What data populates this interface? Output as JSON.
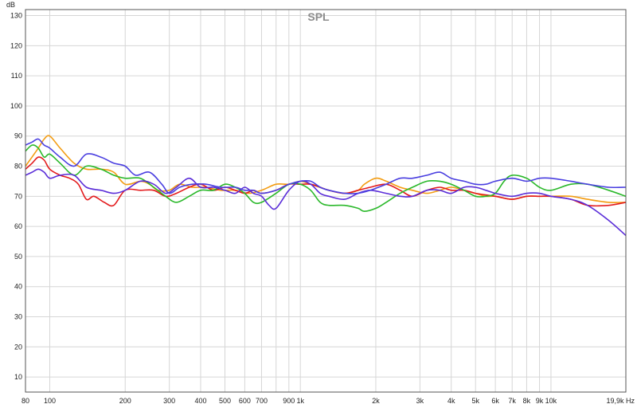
{
  "chart_data": {
    "type": "line",
    "title": "SPL",
    "ylabel": "dB",
    "xlabel": "",
    "x_scale": "log",
    "xlim": [
      80,
      19900
    ],
    "ylim": [
      5,
      132
    ],
    "grid": true,
    "y_ticks": [
      10,
      20,
      30,
      40,
      50,
      60,
      70,
      80,
      90,
      100,
      110,
      120,
      130
    ],
    "x_ticks": [
      {
        "value": 80,
        "label": "80"
      },
      {
        "value": 100,
        "label": "100"
      },
      {
        "value": 200,
        "label": "200"
      },
      {
        "value": 300,
        "label": "300"
      },
      {
        "value": 400,
        "label": "400"
      },
      {
        "value": 500,
        "label": "500"
      },
      {
        "value": 600,
        "label": "600"
      },
      {
        "value": 700,
        "label": "700"
      },
      {
        "value": 900,
        "label": "900"
      },
      {
        "value": 1000,
        "label": "1k"
      },
      {
        "value": 2000,
        "label": "2k"
      },
      {
        "value": 3000,
        "label": "3k"
      },
      {
        "value": 4000,
        "label": "4k"
      },
      {
        "value": 5000,
        "label": "5k"
      },
      {
        "value": 6000,
        "label": "6k"
      },
      {
        "value": 7000,
        "label": "7k"
      },
      {
        "value": 8000,
        "label": "8k"
      },
      {
        "value": 9000,
        "label": "9k"
      },
      {
        "value": 10000,
        "label": "10k"
      },
      {
        "value": 19900,
        "label": "19,9k Hz"
      }
    ],
    "minor_x_gridlines": [
      800,
      20000
    ],
    "series": [
      {
        "color": "#f39c12",
        "points": [
          [
            80,
            80
          ],
          [
            90,
            86
          ],
          [
            95,
            89
          ],
          [
            100,
            90
          ],
          [
            110,
            86
          ],
          [
            125,
            81
          ],
          [
            140,
            79
          ],
          [
            160,
            79
          ],
          [
            180,
            78
          ],
          [
            200,
            74
          ],
          [
            230,
            75
          ],
          [
            250,
            74
          ],
          [
            270,
            72
          ],
          [
            300,
            72
          ],
          [
            330,
            74
          ],
          [
            370,
            73
          ],
          [
            420,
            73
          ],
          [
            480,
            72
          ],
          [
            550,
            72
          ],
          [
            620,
            71
          ],
          [
            700,
            72
          ],
          [
            800,
            74
          ],
          [
            900,
            74
          ],
          [
            1000,
            75
          ],
          [
            1100,
            74
          ],
          [
            1300,
            72
          ],
          [
            1500,
            71
          ],
          [
            1700,
            72
          ],
          [
            1800,
            74
          ],
          [
            2000,
            76
          ],
          [
            2200,
            75
          ],
          [
            2500,
            73
          ],
          [
            2800,
            72
          ],
          [
            3200,
            71
          ],
          [
            3600,
            72
          ],
          [
            4000,
            73
          ],
          [
            4500,
            72
          ],
          [
            5000,
            71
          ],
          [
            5500,
            70
          ],
          [
            6000,
            70
          ],
          [
            7000,
            69
          ],
          [
            8000,
            70
          ],
          [
            9000,
            70
          ],
          [
            10000,
            70
          ],
          [
            12000,
            70
          ],
          [
            14000,
            69
          ],
          [
            17000,
            68
          ],
          [
            19900,
            68
          ]
        ]
      },
      {
        "color": "#e31a1c",
        "points": [
          [
            80,
            79
          ],
          [
            85,
            81
          ],
          [
            90,
            83
          ],
          [
            95,
            82
          ],
          [
            100,
            79
          ],
          [
            110,
            77
          ],
          [
            120,
            76
          ],
          [
            130,
            74
          ],
          [
            140,
            69
          ],
          [
            150,
            70
          ],
          [
            165,
            68
          ],
          [
            180,
            67
          ],
          [
            200,
            72
          ],
          [
            230,
            72
          ],
          [
            260,
            72
          ],
          [
            290,
            70
          ],
          [
            320,
            71
          ],
          [
            360,
            73
          ],
          [
            400,
            74
          ],
          [
            450,
            72
          ],
          [
            500,
            73
          ],
          [
            550,
            72
          ],
          [
            600,
            71
          ],
          [
            650,
            72
          ],
          [
            700,
            71
          ],
          [
            800,
            72
          ],
          [
            900,
            74
          ],
          [
            1000,
            74
          ],
          [
            1100,
            74
          ],
          [
            1200,
            73
          ],
          [
            1300,
            72
          ],
          [
            1500,
            71
          ],
          [
            1700,
            72
          ],
          [
            1900,
            73
          ],
          [
            2200,
            74
          ],
          [
            2500,
            72
          ],
          [
            2800,
            70
          ],
          [
            3200,
            72
          ],
          [
            3600,
            73
          ],
          [
            4000,
            72
          ],
          [
            4500,
            72
          ],
          [
            5000,
            71
          ],
          [
            6000,
            70
          ],
          [
            7000,
            69
          ],
          [
            8000,
            70
          ],
          [
            9000,
            70
          ],
          [
            10000,
            70
          ],
          [
            12000,
            69
          ],
          [
            14000,
            67
          ],
          [
            17000,
            67
          ],
          [
            19900,
            68
          ]
        ]
      },
      {
        "color": "#2ab82a",
        "points": [
          [
            80,
            85
          ],
          [
            85,
            87
          ],
          [
            90,
            86
          ],
          [
            95,
            83
          ],
          [
            100,
            84
          ],
          [
            110,
            81
          ],
          [
            125,
            77
          ],
          [
            140,
            80
          ],
          [
            160,
            79
          ],
          [
            180,
            77
          ],
          [
            200,
            76
          ],
          [
            230,
            76
          ],
          [
            260,
            73
          ],
          [
            290,
            70
          ],
          [
            320,
            68
          ],
          [
            360,
            70
          ],
          [
            400,
            72
          ],
          [
            450,
            72
          ],
          [
            500,
            74
          ],
          [
            550,
            73
          ],
          [
            600,
            71
          ],
          [
            650,
            68
          ],
          [
            700,
            68
          ],
          [
            800,
            71
          ],
          [
            900,
            74
          ],
          [
            1000,
            74
          ],
          [
            1100,
            72
          ],
          [
            1200,
            68
          ],
          [
            1300,
            67
          ],
          [
            1500,
            67
          ],
          [
            1700,
            66
          ],
          [
            1800,
            65
          ],
          [
            2000,
            66
          ],
          [
            2200,
            68
          ],
          [
            2500,
            71
          ],
          [
            2800,
            73
          ],
          [
            3200,
            75
          ],
          [
            3600,
            75
          ],
          [
            4000,
            74
          ],
          [
            4500,
            72
          ],
          [
            5000,
            70
          ],
          [
            5500,
            70
          ],
          [
            6000,
            71
          ],
          [
            6500,
            75
          ],
          [
            7000,
            77
          ],
          [
            8000,
            76
          ],
          [
            9000,
            73
          ],
          [
            10000,
            72
          ],
          [
            12000,
            74
          ],
          [
            14000,
            74
          ],
          [
            17000,
            72
          ],
          [
            19900,
            70
          ]
        ]
      },
      {
        "color": "#5a2dd8",
        "points": [
          [
            80,
            77
          ],
          [
            85,
            78
          ],
          [
            90,
            79
          ],
          [
            95,
            78
          ],
          [
            100,
            76
          ],
          [
            110,
            77
          ],
          [
            125,
            77
          ],
          [
            140,
            73
          ],
          [
            160,
            72
          ],
          [
            180,
            71
          ],
          [
            200,
            72
          ],
          [
            230,
            75
          ],
          [
            260,
            74
          ],
          [
            290,
            71
          ],
          [
            320,
            73
          ],
          [
            360,
            76
          ],
          [
            400,
            73
          ],
          [
            450,
            73
          ],
          [
            500,
            72
          ],
          [
            550,
            71
          ],
          [
            600,
            73
          ],
          [
            650,
            71
          ],
          [
            700,
            70
          ],
          [
            750,
            67
          ],
          [
            800,
            66
          ],
          [
            900,
            72
          ],
          [
            1000,
            75
          ],
          [
            1100,
            74
          ],
          [
            1200,
            71
          ],
          [
            1300,
            70
          ],
          [
            1500,
            69
          ],
          [
            1700,
            71
          ],
          [
            1900,
            72
          ],
          [
            2200,
            71
          ],
          [
            2500,
            70
          ],
          [
            2800,
            70
          ],
          [
            3200,
            72
          ],
          [
            3600,
            72
          ],
          [
            4000,
            71
          ],
          [
            4500,
            73
          ],
          [
            5000,
            73
          ],
          [
            5500,
            72
          ],
          [
            6000,
            71
          ],
          [
            7000,
            70
          ],
          [
            8000,
            71
          ],
          [
            9000,
            71
          ],
          [
            10000,
            70
          ],
          [
            12000,
            69
          ],
          [
            14000,
            67
          ],
          [
            17000,
            62
          ],
          [
            19900,
            57
          ]
        ]
      },
      {
        "color": "#4a3fe0",
        "points": [
          [
            80,
            87
          ],
          [
            85,
            88
          ],
          [
            90,
            89
          ],
          [
            95,
            87
          ],
          [
            100,
            86
          ],
          [
            110,
            83
          ],
          [
            125,
            80
          ],
          [
            140,
            84
          ],
          [
            160,
            83
          ],
          [
            180,
            81
          ],
          [
            200,
            80
          ],
          [
            220,
            77
          ],
          [
            250,
            78
          ],
          [
            280,
            74
          ],
          [
            300,
            71
          ],
          [
            330,
            73
          ],
          [
            370,
            74
          ],
          [
            420,
            74
          ],
          [
            480,
            73
          ],
          [
            550,
            73
          ],
          [
            600,
            72
          ],
          [
            650,
            72
          ],
          [
            700,
            71
          ],
          [
            800,
            72
          ],
          [
            900,
            74
          ],
          [
            1000,
            75
          ],
          [
            1100,
            75
          ],
          [
            1200,
            73
          ],
          [
            1300,
            72
          ],
          [
            1500,
            71
          ],
          [
            1700,
            71
          ],
          [
            1900,
            72
          ],
          [
            2200,
            74
          ],
          [
            2500,
            76
          ],
          [
            2800,
            76
          ],
          [
            3200,
            77
          ],
          [
            3600,
            78
          ],
          [
            4000,
            76
          ],
          [
            4500,
            75
          ],
          [
            5000,
            74
          ],
          [
            5500,
            74
          ],
          [
            6000,
            75
          ],
          [
            7000,
            76
          ],
          [
            8000,
            75
          ],
          [
            9000,
            76
          ],
          [
            10000,
            76
          ],
          [
            12000,
            75
          ],
          [
            14000,
            74
          ],
          [
            17000,
            73
          ],
          [
            19900,
            73
          ]
        ]
      }
    ]
  }
}
